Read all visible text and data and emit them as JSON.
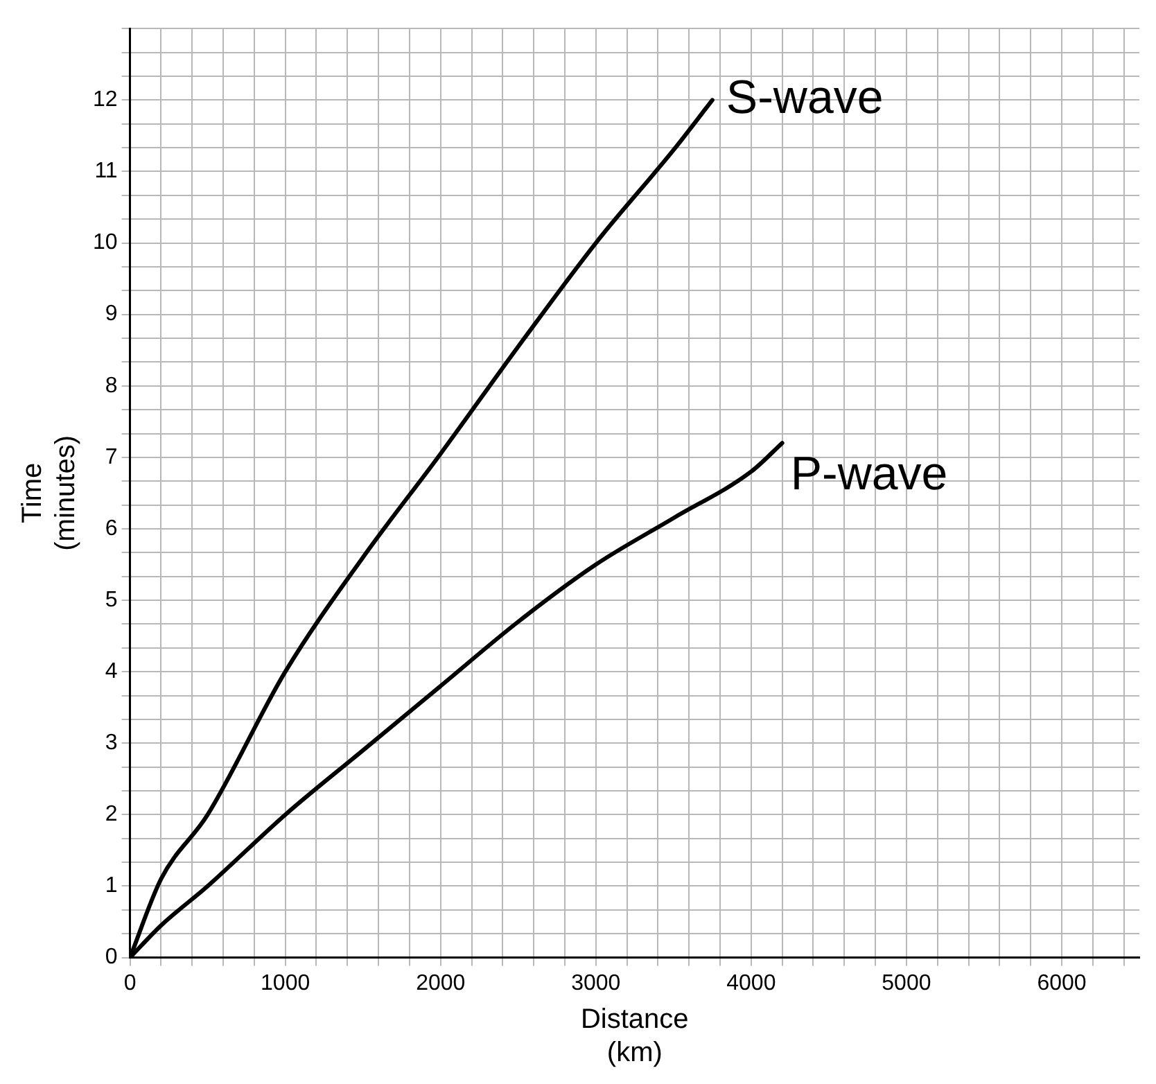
{
  "chart_data": {
    "type": "line",
    "xlabel": "Distance\n(km)",
    "ylabel": "Time\n(minutes)",
    "xlim": [
      0,
      6500
    ],
    "ylim": [
      0,
      13
    ],
    "xticks": [
      0,
      {
        "value": 200,
        "label": null
      },
      {
        "value": 400,
        "label": null
      },
      {
        "value": 600,
        "label": null
      },
      {
        "value": 800,
        "label": null
      },
      1000,
      {
        "value": 1200,
        "label": null
      },
      {
        "value": 1400,
        "label": null
      },
      {
        "value": 1600,
        "label": null
      },
      {
        "value": 1800,
        "label": null
      },
      2000,
      {
        "value": 2200,
        "label": null
      },
      {
        "value": 2400,
        "label": null
      },
      {
        "value": 2600,
        "label": null
      },
      {
        "value": 2800,
        "label": null
      },
      3000,
      {
        "value": 3200,
        "label": null
      },
      {
        "value": 3400,
        "label": null
      },
      {
        "value": 3600,
        "label": null
      },
      {
        "value": 3800,
        "label": null
      },
      4000,
      {
        "value": 4200,
        "label": null
      },
      {
        "value": 4400,
        "label": null
      },
      {
        "value": 4600,
        "label": null
      },
      {
        "value": 4800,
        "label": null
      },
      5000,
      {
        "value": 5200,
        "label": null
      },
      {
        "value": 5400,
        "label": null
      },
      {
        "value": 5600,
        "label": null
      },
      {
        "value": 5800,
        "label": null
      },
      6000,
      {
        "value": 6200,
        "label": null
      },
      {
        "value": 6400,
        "label": null
      }
    ],
    "yticks": [
      0,
      {
        "value": 0.333,
        "label": null
      },
      {
        "value": 0.667,
        "label": null
      },
      1,
      {
        "value": 1.333,
        "label": null
      },
      {
        "value": 1.667,
        "label": null
      },
      2,
      {
        "value": 2.333,
        "label": null
      },
      {
        "value": 2.667,
        "label": null
      },
      3,
      {
        "value": 3.333,
        "label": null
      },
      {
        "value": 3.667,
        "label": null
      },
      4,
      {
        "value": 4.333,
        "label": null
      },
      {
        "value": 4.667,
        "label": null
      },
      5,
      {
        "value": 5.333,
        "label": null
      },
      {
        "value": 5.667,
        "label": null
      },
      6,
      {
        "value": 6.333,
        "label": null
      },
      {
        "value": 6.667,
        "label": null
      },
      7,
      {
        "value": 7.333,
        "label": null
      },
      {
        "value": 7.667,
        "label": null
      },
      8,
      {
        "value": 8.333,
        "label": null
      },
      {
        "value": 8.667,
        "label": null
      },
      9,
      {
        "value": 9.333,
        "label": null
      },
      {
        "value": 9.667,
        "label": null
      },
      10,
      {
        "value": 10.333,
        "label": null
      },
      {
        "value": 10.667,
        "label": null
      },
      11,
      {
        "value": 11.333,
        "label": null
      },
      {
        "value": 11.667,
        "label": null
      },
      12,
      {
        "value": 12.333,
        "label": null
      },
      {
        "value": 12.667,
        "label": null
      },
      {
        "value": 13,
        "label": null
      }
    ],
    "grid": true,
    "legend": false,
    "marker": "none",
    "line_style": "solid",
    "series": [
      {
        "name": "S-wave",
        "color": "#000000",
        "x": [
          0,
          200,
          500,
          1000,
          1500,
          2000,
          2500,
          3000,
          3500,
          3750
        ],
        "values": [
          0,
          1.1,
          2.0,
          4.0,
          5.6,
          7.05,
          8.55,
          10.0,
          11.3,
          12.0
        ]
      },
      {
        "name": "P-wave",
        "color": "#000000",
        "x": [
          0,
          200,
          500,
          1000,
          1500,
          2000,
          2500,
          3000,
          3500,
          4000,
          4200
        ],
        "values": [
          0,
          0.45,
          1.0,
          2.0,
          2.9,
          3.8,
          4.7,
          5.5,
          6.15,
          6.8,
          7.2
        ]
      }
    ]
  }
}
